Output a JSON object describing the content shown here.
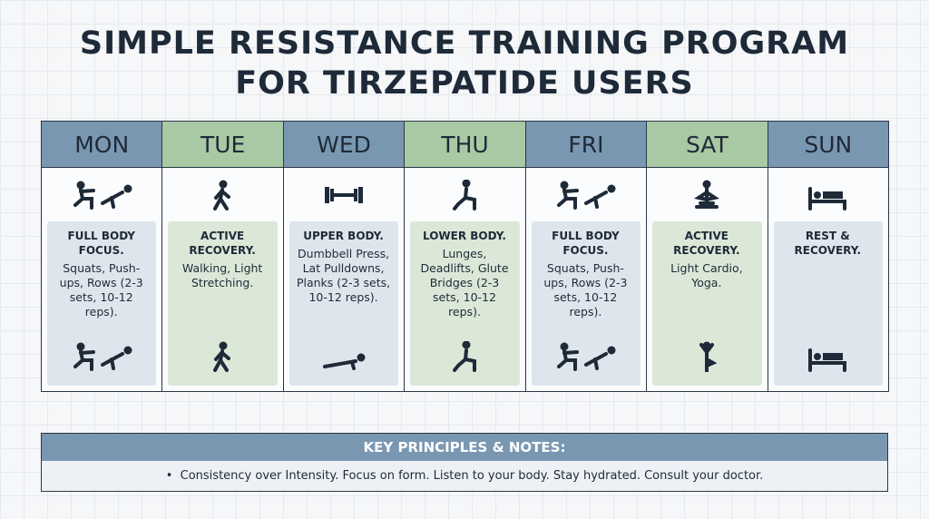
{
  "header": {
    "title_lines": [
      "SIMPLE RESISTANCE TRAINING PROGRAM",
      "FOR TIRZEPATIDE USERS"
    ]
  },
  "days": [
    {
      "day": "MON",
      "heading": "FULL BODY FOCUS.",
      "detail": "Squats, Push-ups, Rows (2-3 sets, 10-12 reps)."
    },
    {
      "day": "TUE",
      "heading": "ACTIVE RECOVERY.",
      "detail": "Walking, Light Stretching."
    },
    {
      "day": "WED",
      "heading": "UPPER BODY.",
      "detail": "Dumbbell Press, Lat Pulldowns, Planks (2-3 sets, 10-12 reps)."
    },
    {
      "day": "THU",
      "heading": "LOWER BODY.",
      "detail": "Lunges, Deadlifts, Glute Bridges (2-3 sets, 10-12 reps)."
    },
    {
      "day": "FRI",
      "heading": "FULL BODY FOCUS.",
      "detail": "Squats, Push-ups, Rows (2-3 sets, 10-12 reps)."
    },
    {
      "day": "SAT",
      "heading": "ACTIVE RECOVERY.",
      "detail": "Light Cardio, Yoga."
    },
    {
      "day": "SUN",
      "heading": "REST & RECOVERY."
    }
  ],
  "notes": {
    "title": "KEY PRINCIPLES & NOTES:",
    "text": "Consistency over Intensity. Focus on form. Listen to your body. Stay hydrated. Consult your doctor."
  }
}
